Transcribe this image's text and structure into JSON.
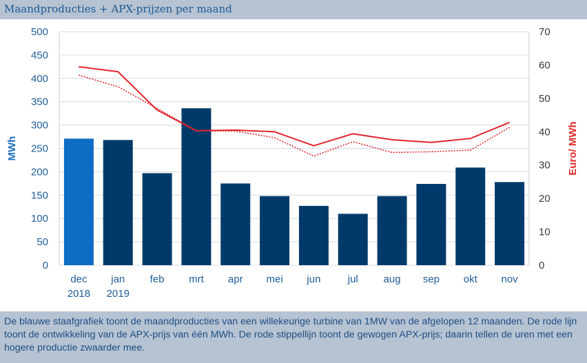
{
  "header": {
    "title": "Maandproducties + APX-prijzen per maand"
  },
  "caption": {
    "text": "De blauwe staafgrafiek toont de maandproducties van een willekeurige turbine van 1MW van de afgelopen 12 maanden. De rode lijn toont de ontwikkeling van de APX-prijs van één MWh. De rode stippellijn toont de gewogen APX-prijs; daarin tellen de uren met een hogere productie zwaarder mee."
  },
  "chart_data": {
    "type": "bar",
    "categories": [
      [
        "dec",
        "2018"
      ],
      [
        "jan",
        "2019"
      ],
      [
        "feb"
      ],
      [
        "mrt"
      ],
      [
        "apr"
      ],
      [
        "mei"
      ],
      [
        "jun"
      ],
      [
        "jul"
      ],
      [
        "aug"
      ],
      [
        "sep"
      ],
      [
        "okt"
      ],
      [
        "nov"
      ]
    ],
    "ylabel": "MWh",
    "y2label": "Euro/ MWh",
    "ylim": [
      0,
      500
    ],
    "y2lim": [
      0,
      70
    ],
    "yticks": [
      "0",
      "50",
      "100",
      "150",
      "200",
      "250",
      "300",
      "350",
      "400",
      "450",
      "500"
    ],
    "y2ticks": [
      "0",
      "10",
      "20",
      "30",
      "40",
      "50",
      "60",
      "70"
    ],
    "grid": true,
    "series": [
      {
        "kind": "bar",
        "axis": "left",
        "values": [
          271,
          268,
          197,
          336,
          175,
          148,
          127,
          110,
          148,
          174,
          209,
          178
        ],
        "colors": [
          "#0e6cc4",
          "#003a6b"
        ]
      },
      {
        "kind": "line",
        "axis": "right",
        "style": "solid",
        "color": "#e3242b",
        "values": [
          59.5,
          58.0,
          46.5,
          40.3,
          40.5,
          40.0,
          35.8,
          39.4,
          37.6,
          36.8,
          38.0,
          42.8
        ]
      },
      {
        "kind": "line",
        "axis": "right",
        "style": "dotted",
        "color": "#e3242b",
        "values": [
          57.0,
          53.5,
          47.0,
          40.3,
          40.2,
          38.2,
          32.7,
          37.0,
          33.8,
          34.0,
          34.5,
          41.3
        ]
      }
    ]
  }
}
